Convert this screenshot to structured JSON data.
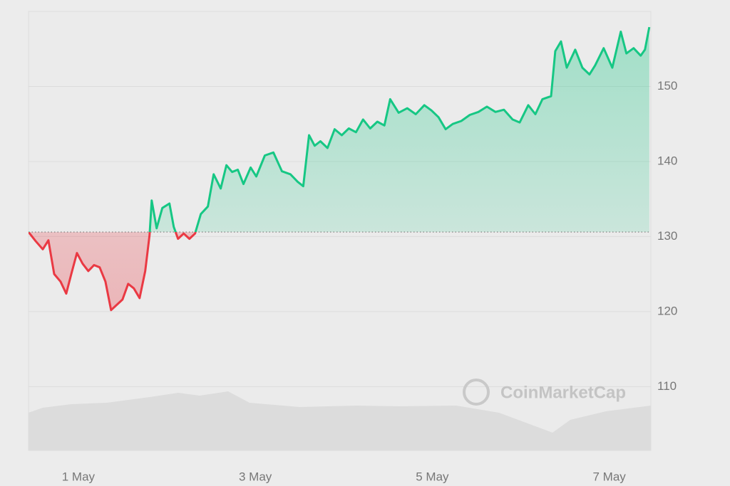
{
  "chart_data": {
    "type": "line",
    "watermark": "CoinMarketCap",
    "x": [
      0.437,
      0.517,
      0.598,
      0.662,
      0.727,
      0.799,
      0.863,
      0.92,
      0.984,
      1.048,
      1.113,
      1.177,
      1.241,
      1.306,
      1.37,
      1.434,
      1.499,
      1.563,
      1.627,
      1.692,
      1.756,
      1.805,
      1.829,
      1.885,
      1.949,
      2.03,
      2.078,
      2.126,
      2.191,
      2.255,
      2.319,
      2.384,
      2.464,
      2.529,
      2.609,
      2.673,
      2.738,
      2.802,
      2.866,
      2.947,
      3.011,
      3.108,
      3.204,
      3.301,
      3.397,
      3.478,
      3.542,
      3.607,
      3.671,
      3.735,
      3.816,
      3.896,
      3.977,
      4.057,
      4.138,
      4.218,
      4.298,
      4.379,
      4.459,
      4.524,
      4.62,
      4.717,
      4.813,
      4.91,
      4.99,
      5.07,
      5.151,
      5.231,
      5.328,
      5.424,
      5.521,
      5.617,
      5.714,
      5.81,
      5.907,
      5.988,
      6.084,
      6.165,
      6.245,
      6.342,
      6.39,
      6.454,
      6.519,
      6.615,
      6.696,
      6.776,
      6.84,
      6.937,
      7.034,
      7.13,
      7.194,
      7.275,
      7.355,
      7.403,
      7.452
    ],
    "values": [
      130.6,
      129.4,
      128.3,
      129.5,
      125.0,
      124.0,
      122.4,
      125.0,
      127.8,
      126.4,
      125.4,
      126.2,
      125.9,
      124.0,
      120.2,
      120.9,
      121.6,
      123.7,
      123.1,
      121.8,
      125.4,
      130.2,
      134.8,
      131.1,
      133.8,
      134.4,
      131.3,
      129.7,
      130.4,
      129.7,
      130.4,
      133.0,
      134.0,
      138.3,
      136.4,
      139.5,
      138.6,
      138.9,
      137.0,
      139.2,
      138.0,
      140.8,
      141.2,
      138.7,
      138.3,
      137.3,
      136.7,
      143.5,
      142.1,
      142.7,
      141.8,
      144.3,
      143.5,
      144.4,
      143.9,
      145.6,
      144.4,
      145.3,
      144.8,
      148.3,
      146.5,
      147.1,
      146.3,
      147.5,
      146.8,
      145.9,
      144.3,
      145.0,
      145.4,
      146.2,
      146.6,
      147.3,
      146.6,
      146.9,
      145.6,
      145.2,
      147.5,
      146.3,
      148.3,
      148.7,
      154.7,
      156.0,
      152.5,
      154.9,
      152.5,
      151.6,
      152.8,
      155.1,
      152.5,
      157.3,
      154.4,
      155.1,
      154.1,
      154.9,
      157.9
    ],
    "baseline": 130.6,
    "up_color": "#16c784",
    "down_color": "#ea3943",
    "xlim": [
      0.437,
      7.47
    ],
    "xticks": [
      {
        "value": 1,
        "label": "1 May"
      },
      {
        "value": 3,
        "label": "3 May"
      },
      {
        "value": 5,
        "label": "5 May"
      },
      {
        "value": 7,
        "label": "7 May"
      }
    ],
    "ylim": [
      101.5,
      160
    ],
    "yticks": [
      110,
      120,
      130,
      140,
      150
    ],
    "grid": true
  }
}
